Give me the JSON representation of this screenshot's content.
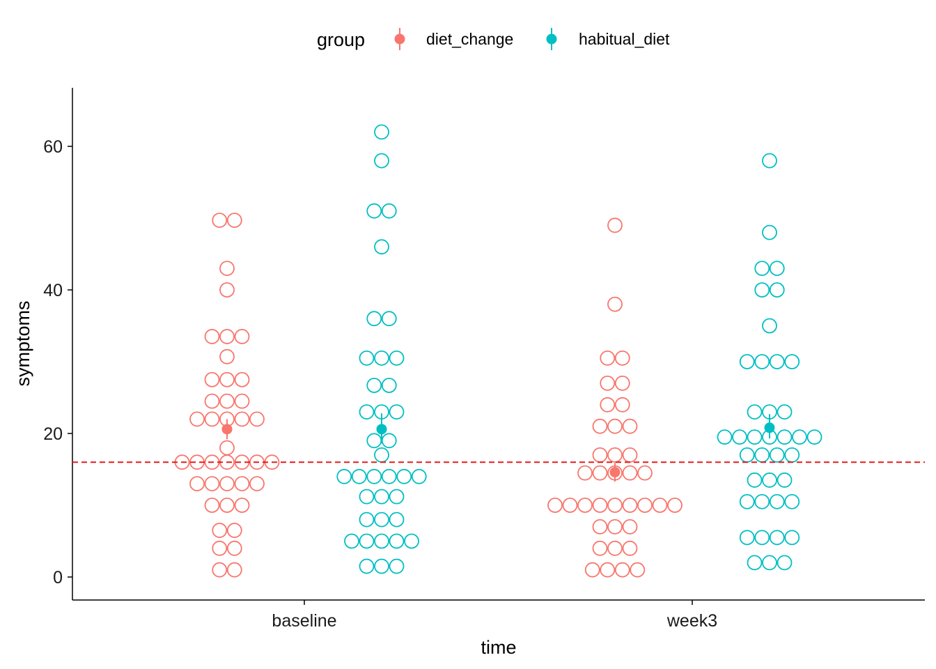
{
  "chart_data": {
    "type": "scatter",
    "subtype": "dotplot-with-mean-and-error",
    "xlabel": "time",
    "ylabel": "symptoms",
    "categories": [
      "baseline",
      "week3"
    ],
    "yticks": [
      0,
      20,
      40,
      60
    ],
    "ylim": [
      -3,
      68
    ],
    "reference_line": {
      "y": 16,
      "style": "dashed",
      "color": "#E41A1C"
    },
    "grid": false,
    "legend": {
      "title": "group",
      "position": "top",
      "entries": [
        "diet_change",
        "habitual_diet"
      ]
    },
    "series": [
      {
        "name": "diet_change",
        "color": "#F8766D",
        "points": [
          {
            "category": "baseline",
            "values": [
              49.7,
              49.7,
              43,
              40,
              33.5,
              33.5,
              33.5,
              30.7,
              27.5,
              27.5,
              27.5,
              24.5,
              24.5,
              24.5,
              22,
              22,
              22,
              22,
              22,
              18,
              16,
              16,
              16,
              16,
              16,
              16,
              16,
              13,
              13,
              13,
              13,
              13,
              10,
              10,
              10,
              6.5,
              6.5,
              4,
              4,
              1,
              1
            ],
            "mean": 20.6,
            "error": [
              19.2,
              22.0
            ]
          },
          {
            "category": "week3",
            "values": [
              49,
              38,
              30.5,
              30.5,
              27,
              27,
              24,
              24,
              21,
              21,
              21,
              17,
              17,
              17,
              14.5,
              14.5,
              14.5,
              14.5,
              14.5,
              10,
              10,
              10,
              10,
              10,
              10,
              10,
              10,
              10,
              7,
              7,
              7,
              4,
              4,
              4,
              1,
              1,
              1,
              1
            ],
            "mean": 14.6,
            "error": [
              13.3,
              15.9
            ]
          }
        ]
      },
      {
        "name": "habitual_diet",
        "color": "#00BFC4",
        "points": [
          {
            "category": "baseline",
            "values": [
              62,
              58,
              51,
              51,
              46,
              36,
              36,
              30.5,
              30.5,
              30.5,
              26.7,
              26.7,
              23,
              23,
              23,
              19,
              19,
              17,
              14,
              14,
              14,
              14,
              14,
              14,
              11.2,
              11.2,
              11.2,
              8,
              8,
              8,
              5,
              5,
              5,
              5,
              5,
              1.5,
              1.5,
              1.5
            ],
            "mean": 20.6,
            "error": [
              18.6,
              22.8
            ]
          },
          {
            "category": "week3",
            "values": [
              58,
              48,
              43,
              43,
              40,
              40,
              35,
              30,
              30,
              30,
              30,
              23,
              23,
              23,
              19.5,
              19.5,
              19.5,
              19.5,
              19.5,
              19.5,
              19.5,
              17,
              17,
              17,
              17,
              13.5,
              13.5,
              13.5,
              10.5,
              10.5,
              10.5,
              10.5,
              5.5,
              5.5,
              5.5,
              5.5,
              2,
              2,
              2
            ],
            "mean": 20.8,
            "error": [
              19.3,
              22.7
            ]
          }
        ]
      }
    ]
  }
}
